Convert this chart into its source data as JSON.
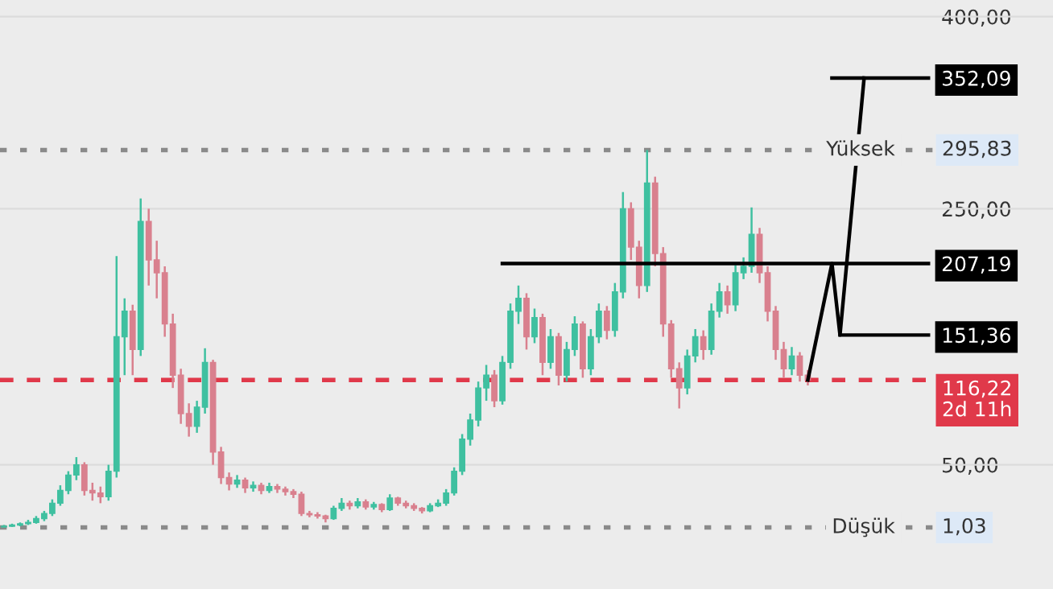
{
  "chart_data": {
    "type": "candlestick",
    "categories": [
      null,
      null,
      null,
      null,
      null,
      null,
      null,
      null,
      null,
      null,
      null,
      null,
      null,
      null,
      null,
      null,
      null,
      null,
      null,
      null,
      null,
      null,
      null,
      null,
      null,
      null,
      null,
      null,
      null,
      null,
      null,
      null,
      null,
      null,
      null,
      null,
      null,
      null,
      null,
      null,
      null,
      null,
      null,
      null,
      null,
      null,
      null,
      null,
      null,
      null,
      null,
      null,
      null,
      null,
      null,
      null,
      null,
      null,
      null,
      null,
      null,
      null,
      null,
      null,
      null,
      null,
      null,
      null,
      null,
      null,
      null,
      null,
      null,
      null,
      null,
      null,
      null,
      null,
      null,
      null,
      null,
      null,
      null,
      null,
      null,
      null,
      null,
      null,
      null,
      null,
      null,
      null,
      null,
      null,
      null,
      null,
      null,
      null,
      null,
      null,
      null,
      null,
      null,
      null,
      null,
      null,
      null,
      null,
      null,
      null,
      null,
      null,
      null,
      null,
      null,
      null,
      null,
      null,
      null,
      null,
      null,
      null,
      null,
      null,
      null,
      null,
      null,
      null,
      null,
      null,
      null
    ],
    "ohlc": [
      [
        1.5,
        3,
        1.03,
        2
      ],
      [
        2,
        4,
        1.5,
        3
      ],
      [
        3,
        5,
        2,
        4
      ],
      [
        4,
        7,
        3,
        5
      ],
      [
        5,
        10,
        4,
        8
      ],
      [
        8,
        14,
        6,
        12
      ],
      [
        12,
        23,
        10,
        20
      ],
      [
        20,
        34,
        18,
        30
      ],
      [
        30,
        45,
        27,
        42
      ],
      [
        42,
        56,
        38,
        50
      ],
      [
        50,
        52,
        26,
        30
      ],
      [
        30,
        36,
        22,
        28
      ],
      [
        28,
        33,
        20,
        25
      ],
      [
        25,
        50,
        22,
        45
      ],
      [
        45,
        213,
        40,
        150
      ],
      [
        150,
        180,
        120,
        170
      ],
      [
        170,
        175,
        120,
        140
      ],
      [
        140,
        258,
        135,
        240
      ],
      [
        240,
        250,
        190,
        210
      ],
      [
        210,
        225,
        180,
        200
      ],
      [
        200,
        205,
        150,
        160
      ],
      [
        160,
        168,
        110,
        120
      ],
      [
        120,
        125,
        82,
        90
      ],
      [
        90,
        98,
        72,
        80
      ],
      [
        80,
        100,
        75,
        95
      ],
      [
        95,
        141,
        90,
        130
      ],
      [
        130,
        132,
        50,
        60
      ],
      [
        60,
        64,
        35,
        40
      ],
      [
        40,
        44,
        30,
        35
      ],
      [
        35,
        42,
        32,
        38
      ],
      [
        38,
        40,
        28,
        32
      ],
      [
        32,
        37,
        29,
        34
      ],
      [
        34,
        36,
        27,
        30
      ],
      [
        30,
        36,
        28,
        33
      ],
      [
        33,
        35,
        28,
        31
      ],
      [
        31,
        33,
        26,
        29
      ],
      [
        29,
        31,
        24,
        27
      ],
      [
        27,
        29,
        10,
        12
      ],
      [
        12,
        14,
        9,
        11
      ],
      [
        11,
        13,
        8,
        10
      ],
      [
        10,
        11,
        5,
        8
      ],
      [
        8,
        18,
        7,
        16
      ],
      [
        16,
        24,
        14,
        20
      ],
      [
        20,
        22,
        15,
        18
      ],
      [
        18,
        24,
        16,
        21
      ],
      [
        21,
        23,
        15,
        17
      ],
      [
        17,
        21,
        15,
        19
      ],
      [
        19,
        20,
        13,
        15
      ],
      [
        15,
        27,
        14,
        24
      ],
      [
        24,
        25,
        18,
        20
      ],
      [
        20,
        22,
        16,
        18
      ],
      [
        18,
        20,
        14,
        16
      ],
      [
        16,
        17,
        12,
        14
      ],
      [
        14,
        20,
        13,
        18
      ],
      [
        18,
        23,
        17,
        20
      ],
      [
        20,
        31,
        18,
        28
      ],
      [
        28,
        48,
        26,
        45
      ],
      [
        45,
        74,
        42,
        70
      ],
      [
        70,
        90,
        65,
        85
      ],
      [
        85,
        115,
        80,
        110
      ],
      [
        110,
        128,
        100,
        120
      ],
      [
        120,
        124,
        95,
        100
      ],
      [
        100,
        135,
        97,
        130
      ],
      [
        130,
        176,
        125,
        170
      ],
      [
        170,
        190,
        160,
        180
      ],
      [
        180,
        184,
        140,
        150
      ],
      [
        150,
        172,
        145,
        165
      ],
      [
        165,
        168,
        120,
        130
      ],
      [
        130,
        156,
        125,
        150
      ],
      [
        150,
        153,
        112,
        120
      ],
      [
        120,
        146,
        115,
        140
      ],
      [
        140,
        166,
        135,
        160
      ],
      [
        160,
        162,
        118,
        125
      ],
      [
        125,
        156,
        120,
        150
      ],
      [
        150,
        176,
        145,
        170
      ],
      [
        170,
        174,
        148,
        155
      ],
      [
        155,
        192,
        150,
        185
      ],
      [
        185,
        263,
        180,
        250
      ],
      [
        250,
        255,
        210,
        220
      ],
      [
        220,
        225,
        180,
        190
      ],
      [
        190,
        295.83,
        185,
        270
      ],
      [
        270,
        275,
        205,
        215
      ],
      [
        215,
        220,
        150,
        160
      ],
      [
        160,
        163,
        118,
        125
      ],
      [
        125,
        130,
        94,
        110
      ],
      [
        110,
        140,
        105,
        135
      ],
      [
        135,
        156,
        130,
        150
      ],
      [
        150,
        155,
        132,
        140
      ],
      [
        140,
        176,
        136,
        170
      ],
      [
        170,
        192,
        165,
        185
      ],
      [
        185,
        190,
        168,
        175
      ],
      [
        175,
        206,
        170,
        200
      ],
      [
        200,
        212,
        195,
        205
      ],
      [
        205,
        251,
        200,
        230
      ],
      [
        230,
        235,
        192,
        200
      ],
      [
        200,
        205,
        162,
        170
      ],
      [
        170,
        174,
        132,
        140
      ],
      [
        140,
        146,
        118,
        125
      ],
      [
        125,
        142,
        120,
        135
      ],
      [
        135,
        138,
        115,
        120
      ],
      [
        120,
        124,
        112,
        116.22
      ],
      null,
      null,
      null,
      null,
      null,
      null,
      null,
      null,
      null,
      null,
      null,
      null,
      null,
      null,
      null,
      null,
      null,
      null,
      null,
      null,
      null,
      null,
      null,
      null,
      null,
      null,
      null,
      null,
      null,
      null
    ],
    "series": [
      {
        "type": "line",
        "color": "#000000",
        "values": [
          null,
          null,
          null,
          null,
          null,
          null,
          null,
          null,
          null,
          null,
          null,
          null,
          null,
          null,
          null,
          null,
          null,
          null,
          null,
          null,
          null,
          null,
          null,
          null,
          null,
          null,
          null,
          null,
          null,
          null,
          null,
          null,
          null,
          null,
          null,
          null,
          null,
          null,
          null,
          null,
          null,
          null,
          null,
          null,
          null,
          null,
          null,
          null,
          null,
          null,
          null,
          null,
          null,
          null,
          null,
          null,
          null,
          null,
          null,
          null,
          null,
          null,
          null,
          null,
          null,
          null,
          null,
          null,
          null,
          null,
          null,
          null,
          null,
          null,
          null,
          null,
          null,
          null,
          null,
          null,
          null,
          null,
          null,
          null,
          null,
          null,
          null,
          null,
          null,
          null,
          null,
          null,
          null,
          null,
          null,
          null,
          null,
          null,
          null,
          null,
          116.22,
          null,
          null,
          207.19,
          151.36,
          null,
          null,
          352.09,
          null,
          null,
          null,
          null,
          null,
          null,
          null,
          null,
          null,
          null,
          null,
          null,
          null,
          null,
          null,
          null,
          null,
          null,
          null,
          null,
          null,
          null,
          null
        ]
      },
      {
        "type": "line",
        "color": "#000000",
        "values": [
          null,
          null,
          null,
          null,
          null,
          null,
          null,
          null,
          null,
          null,
          null,
          null,
          null,
          null,
          null,
          null,
          null,
          null,
          null,
          null,
          null,
          null,
          null,
          null,
          null,
          null,
          null,
          null,
          null,
          null,
          null,
          null,
          null,
          null,
          null,
          null,
          null,
          null,
          null,
          null,
          null,
          null,
          null,
          null,
          null,
          null,
          null,
          null,
          null,
          null,
          null,
          null,
          null,
          null,
          null,
          null,
          null,
          null,
          null,
          null,
          null,
          null,
          207.19,
          207.19,
          207.19,
          207.19,
          207.19,
          207.19,
          207.19,
          207.19,
          207.19,
          207.19,
          207.19,
          207.19,
          207.19,
          207.19,
          207.19,
          207.19,
          207.19,
          207.19,
          207.19,
          207.19,
          207.19,
          207.19,
          207.19,
          207.19,
          207.19,
          207.19,
          207.19,
          207.19,
          207.19,
          207.19,
          207.19,
          207.19,
          207.19,
          207.19,
          207.19,
          207.19,
          207.19,
          207.19,
          207.19,
          207.19,
          207.19,
          207.19,
          207.19,
          207.19,
          207.19,
          207.19,
          207.19,
          207.19,
          207.19,
          207.19,
          207.19,
          207.19,
          207.19,
          207.19,
          null,
          null,
          null,
          null,
          null,
          null,
          null,
          null,
          null,
          null,
          null,
          null,
          null,
          null,
          null
        ]
      },
      {
        "type": "line",
        "color": "#000000",
        "values": [
          null,
          null,
          null,
          null,
          null,
          null,
          null,
          null,
          null,
          null,
          null,
          null,
          null,
          null,
          null,
          null,
          null,
          null,
          null,
          null,
          null,
          null,
          null,
          null,
          null,
          null,
          null,
          null,
          null,
          null,
          null,
          null,
          null,
          null,
          null,
          null,
          null,
          null,
          null,
          null,
          null,
          null,
          null,
          null,
          null,
          null,
          null,
          null,
          null,
          null,
          null,
          null,
          null,
          null,
          null,
          null,
          null,
          null,
          null,
          null,
          null,
          null,
          null,
          null,
          null,
          null,
          null,
          null,
          null,
          null,
          null,
          null,
          null,
          null,
          null,
          null,
          null,
          null,
          null,
          null,
          null,
          null,
          null,
          null,
          null,
          null,
          null,
          null,
          null,
          null,
          null,
          null,
          null,
          null,
          null,
          null,
          null,
          null,
          null,
          null,
          null,
          null,
          null,
          null,
          151.36,
          151.36,
          151.36,
          151.36,
          151.36,
          151.36,
          151.36,
          151.36,
          151.36,
          151.36,
          151.36,
          151.36,
          null,
          null,
          null,
          null,
          null,
          null,
          null,
          null,
          null,
          null,
          null,
          null,
          null,
          null,
          null
        ]
      },
      {
        "type": "line",
        "color": "#000000",
        "values": [
          null,
          null,
          null,
          null,
          null,
          null,
          null,
          null,
          null,
          null,
          null,
          null,
          null,
          null,
          null,
          null,
          null,
          null,
          null,
          null,
          null,
          null,
          null,
          null,
          null,
          null,
          null,
          null,
          null,
          null,
          null,
          null,
          null,
          null,
          null,
          null,
          null,
          null,
          null,
          null,
          null,
          null,
          null,
          null,
          null,
          null,
          null,
          null,
          null,
          null,
          null,
          null,
          null,
          null,
          null,
          null,
          null,
          null,
          null,
          null,
          null,
          null,
          null,
          null,
          null,
          null,
          null,
          null,
          null,
          null,
          null,
          null,
          null,
          null,
          null,
          null,
          null,
          null,
          null,
          null,
          null,
          null,
          null,
          null,
          null,
          null,
          null,
          null,
          null,
          null,
          null,
          null,
          null,
          null,
          null,
          null,
          null,
          null,
          null,
          null,
          null,
          null,
          null,
          352.09,
          352.09,
          352.09,
          352.09,
          352.09,
          352.09,
          352.09,
          352.09,
          352.09,
          352.09,
          352.09,
          352.09,
          352.09,
          null,
          null,
          null,
          null,
          null,
          null,
          null,
          null,
          null,
          null,
          null,
          null,
          null,
          null,
          null
        ]
      }
    ],
    "ylim": [
      -47,
      413
    ],
    "yticks": [
      {
        "value": 400,
        "label": "400,00"
      },
      {
        "value": 352.09,
        "label": "352,09"
      },
      {
        "value": 250,
        "label": "250,00"
      },
      {
        "value": 207.19,
        "label": "207,19"
      },
      {
        "value": 151.36,
        "label": "151,36"
      },
      {
        "value": 50,
        "label": "50,00"
      }
    ],
    "grid": "y",
    "ref_lines": [
      {
        "axis": "y",
        "value": 295.83,
        "label": "295,83",
        "color": "#8a8a8a",
        "line_style": "dotted"
      },
      {
        "axis": "y",
        "value": 116.22,
        "label": "116,22\n2d 11h",
        "color": "#e0394a",
        "line_style": "dashed"
      },
      {
        "axis": "y",
        "value": 1.03,
        "label": "1,03",
        "color": "#8a8a8a",
        "line_style": "dotted"
      }
    ],
    "annotations": [
      {
        "text": "Yüksek",
        "y": 295.83
      },
      {
        "text": "Düşük",
        "y": 1.03
      }
    ]
  }
}
